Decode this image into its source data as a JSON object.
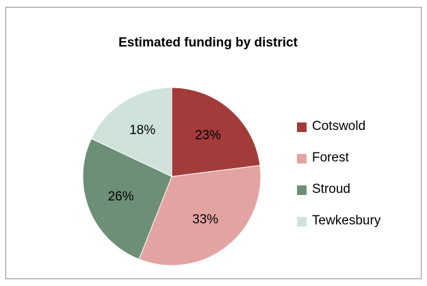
{
  "chart_data": {
    "type": "pie",
    "title": "Estimated funding by district",
    "categories": [
      "Cotswold",
      "Forest",
      "Stroud",
      "Tewkesbury"
    ],
    "values": [
      23,
      33,
      26,
      18
    ],
    "value_labels": [
      "23%",
      "33%",
      "26%",
      "18%"
    ],
    "colors": [
      "#a23b3a",
      "#e3a3a2",
      "#6e8f77",
      "#cfe3da"
    ],
    "legend_position": "right",
    "start_angle": "12 o'clock",
    "direction": "clockwise"
  }
}
